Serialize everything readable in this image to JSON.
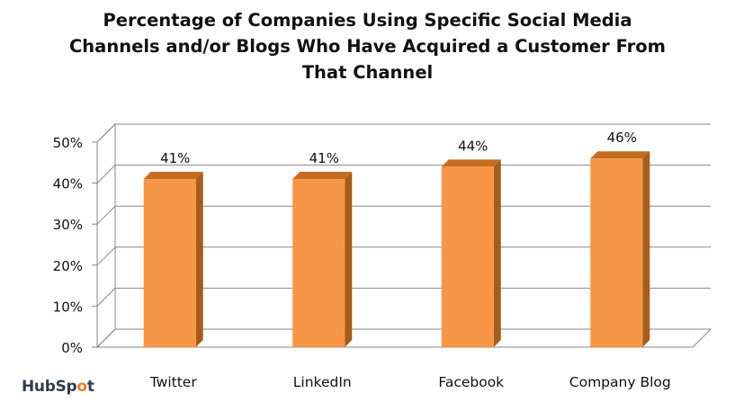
{
  "title_lines": [
    "Percentage of Companies Using Specific Social Media",
    "Channels and/or Blogs Who Have Acquired a Customer From",
    "That Channel"
  ],
  "logo": {
    "text_left": "HubSp",
    "text_o": "o",
    "text_right": "t"
  },
  "colors": {
    "bar_front": "#f79646",
    "bar_side": "#a65d1c",
    "bar_top": "#c46d21",
    "grid": "#878787"
  },
  "chart_data": {
    "type": "bar",
    "title": "Percentage of Companies Using Specific Social Media Channels and/or Blogs Who Have Acquired a Customer From That Channel",
    "categories": [
      "Twitter",
      "LinkedIn",
      "Facebook",
      "Company Blog"
    ],
    "values": [
      41,
      41,
      44,
      46
    ],
    "data_labels": [
      "41%",
      "41%",
      "44%",
      "46%"
    ],
    "yticks": [
      "0%",
      "10%",
      "20%",
      "30%",
      "40%",
      "50%"
    ],
    "ylim": [
      0,
      50
    ],
    "grid": true,
    "legend": "none",
    "xlabel": "",
    "ylabel": ""
  }
}
